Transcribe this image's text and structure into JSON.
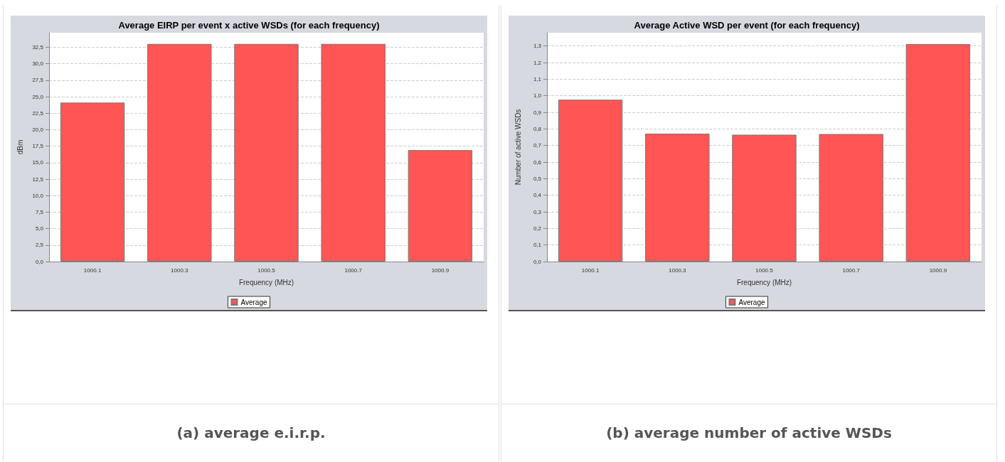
{
  "chart_data": [
    {
      "type": "bar",
      "title": "Average EIRP per event x active WSDs (for each frequency)",
      "xlabel": "Frequency (MHz)",
      "ylabel": "dBm",
      "categories": [
        "1000.1",
        "1000.3",
        "1000.5",
        "1000.7",
        "1000.9"
      ],
      "series": [
        {
          "name": "Average",
          "color": "#ff5555",
          "values": [
            24.1,
            33.0,
            33.0,
            33.0,
            16.9
          ]
        }
      ],
      "ylim": [
        0,
        34.7
      ],
      "yticks": [
        {
          "value": 0,
          "label": "0,0"
        },
        {
          "value": 2.5,
          "label": "2,5"
        },
        {
          "value": 5,
          "label": "5,0"
        },
        {
          "value": 7.5,
          "label": "7,5"
        },
        {
          "value": 10,
          "label": "10,0"
        },
        {
          "value": 12.5,
          "label": "12,5"
        },
        {
          "value": 15,
          "label": "15,0"
        },
        {
          "value": 17.5,
          "label": "17,5"
        },
        {
          "value": 20,
          "label": "20,0"
        },
        {
          "value": 22.5,
          "label": "22,5"
        },
        {
          "value": 25,
          "label": "25,0"
        },
        {
          "value": 27.5,
          "label": "27,5"
        },
        {
          "value": 30,
          "label": "30,0"
        },
        {
          "value": 32.5,
          "label": "32,5"
        }
      ],
      "grid": "y",
      "legend": "bottom",
      "annotations": [
        "(a) average e.i.r.p."
      ]
    },
    {
      "type": "bar",
      "title": "Average Active WSD per event (for each frequency)",
      "xlabel": "Frequency (MHz)",
      "ylabel": "Number of active WSDs",
      "categories": [
        "1000.1",
        "1000.3",
        "1000.5",
        "1000.7",
        "1000.9"
      ],
      "series": [
        {
          "name": "Average",
          "color": "#ff5555",
          "values": [
            0.976,
            0.771,
            0.765,
            0.769,
            1.311
          ]
        }
      ],
      "ylim": [
        0,
        1.38
      ],
      "yticks": [
        {
          "value": 0,
          "label": "0,0"
        },
        {
          "value": 0.1,
          "label": "0,1"
        },
        {
          "value": 0.2,
          "label": "0,2"
        },
        {
          "value": 0.3,
          "label": "0,3"
        },
        {
          "value": 0.4,
          "label": "0,4"
        },
        {
          "value": 0.5,
          "label": "0,5"
        },
        {
          "value": 0.6,
          "label": "0,6"
        },
        {
          "value": 0.7,
          "label": "0,7"
        },
        {
          "value": 0.8,
          "label": "0,8"
        },
        {
          "value": 0.9,
          "label": "0,9"
        },
        {
          "value": 1.0,
          "label": "1,0"
        },
        {
          "value": 1.1,
          "label": "1,1"
        },
        {
          "value": 1.2,
          "label": "1,2"
        },
        {
          "value": 1.3,
          "label": "1,3"
        }
      ],
      "grid": "y",
      "legend": "bottom",
      "annotations": [
        "(b) average number of active WSDs"
      ]
    }
  ]
}
